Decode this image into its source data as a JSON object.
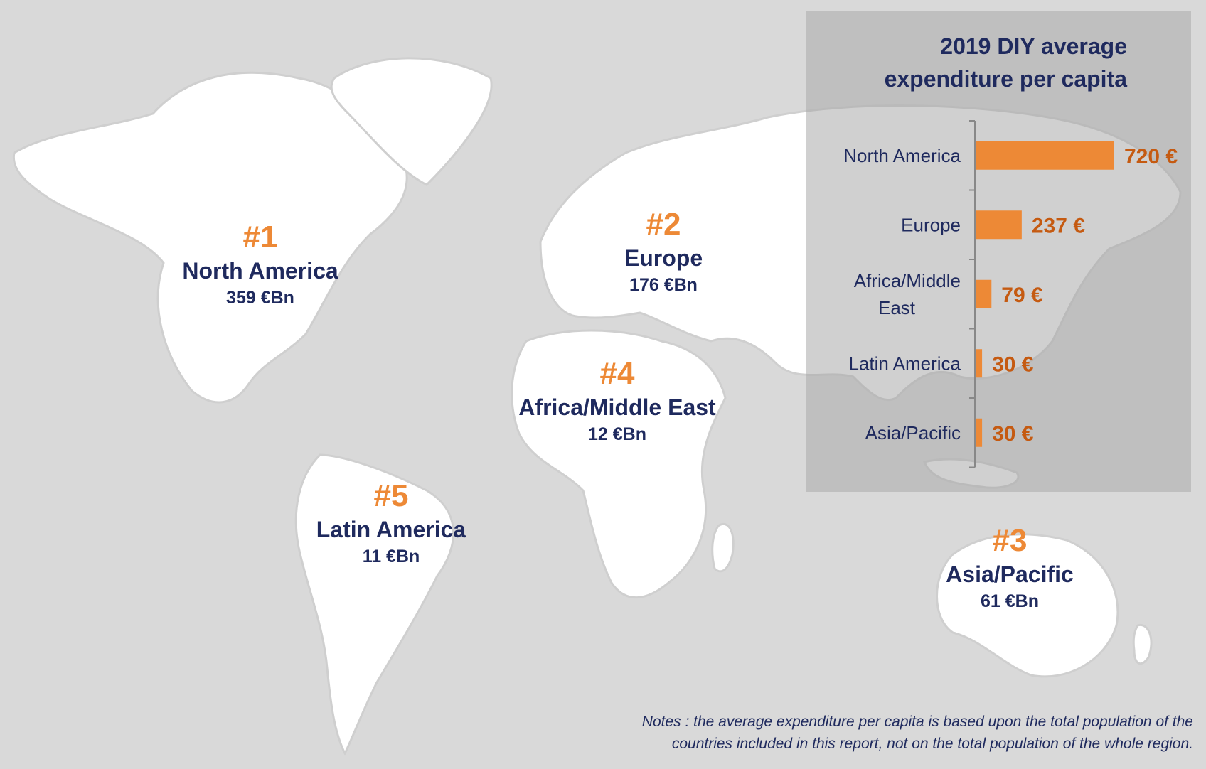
{
  "colors": {
    "background": "#d9d9d9",
    "land": "#ffffff",
    "rank": "#ed8936",
    "navy": "#1f2a5e",
    "bar": "#ed8936",
    "bar_value": "#c55a11"
  },
  "map_labels": [
    {
      "rank": "#1",
      "region": "North America",
      "market": "359 €Bn"
    },
    {
      "rank": "#2",
      "region": "Europe",
      "market": "176 €Bn"
    },
    {
      "rank": "#4",
      "region": "Africa/Middle East",
      "market": "12 €Bn"
    },
    {
      "rank": "#5",
      "region": "Latin America",
      "market": "11 €Bn"
    },
    {
      "rank": "#3",
      "region": "Asia/Pacific",
      "market": "61 €Bn"
    }
  ],
  "chart_data": {
    "type": "bar",
    "orientation": "horizontal",
    "title": "2019 DIY average expenditure per capita",
    "title_lines": [
      "2019 DIY average",
      "expenditure per capita"
    ],
    "categories": [
      "North America",
      "Europe",
      "Africa/Middle East",
      "Latin America",
      "Asia/Pacific"
    ],
    "category_lines": [
      [
        "North America"
      ],
      [
        "Europe"
      ],
      [
        "Africa/Middle",
        "East"
      ],
      [
        "Latin America"
      ],
      [
        "Asia/Pacific"
      ]
    ],
    "values": [
      720,
      237,
      79,
      30,
      30
    ],
    "value_labels": [
      "720 €",
      "237 €",
      "79 €",
      "30 €",
      "30 €"
    ],
    "unit": "€",
    "xlim": [
      0,
      720
    ],
    "grid": false,
    "legend": "none"
  },
  "notes": {
    "line1": "Notes : the average expenditure per capita is based upon the total population of the",
    "line2": "countries included in this report, not on the total population of the whole region."
  }
}
